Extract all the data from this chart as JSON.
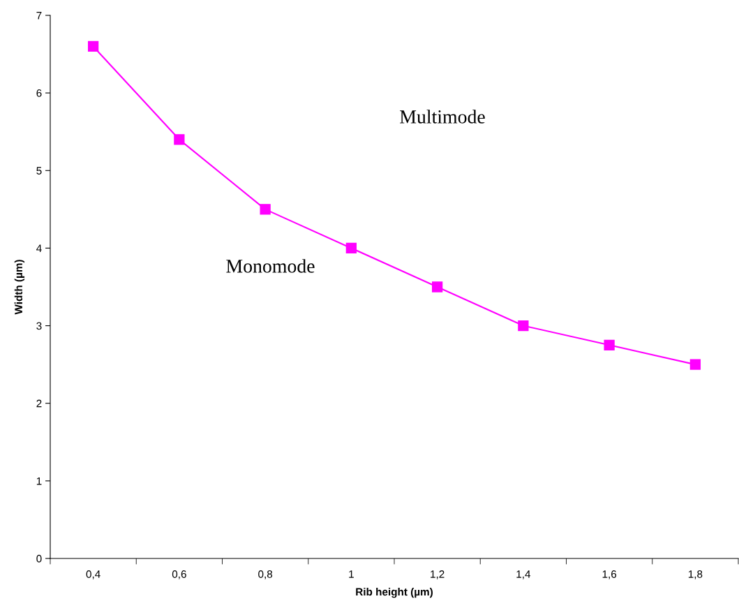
{
  "chart_data": {
    "type": "line",
    "xlabel": "Rib height (µm)",
    "ylabel": "Width (µm)",
    "categories": [
      "0,4",
      "0,6",
      "0,8",
      "1",
      "1,2",
      "1,4",
      "1,6",
      "1,8"
    ],
    "series": [
      {
        "color": "#ff00ff",
        "values": [
          6.6,
          5.4,
          4.5,
          4.0,
          3.5,
          3.0,
          2.75,
          2.5
        ]
      }
    ],
    "ylim": [
      0,
      7
    ],
    "yticks": [
      0,
      1,
      2,
      3,
      4,
      5,
      6,
      7
    ],
    "marker": "square",
    "line_style": "solid",
    "grid": false,
    "legend": false,
    "annotations": [
      "Multimode",
      "Monomode"
    ]
  }
}
